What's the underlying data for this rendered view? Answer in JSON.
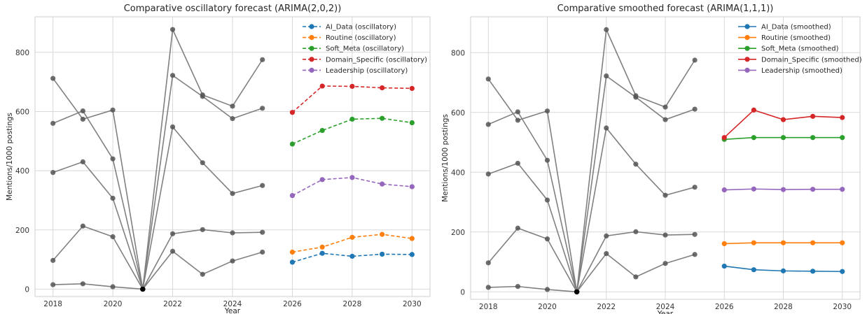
{
  "chart_data": [
    {
      "type": "line",
      "title": "Comparative oscillatory forecast (ARIMA(2,0,2))",
      "xlabel": "Year",
      "ylabel": "Mentions/1000 postings",
      "xlim": [
        2017.4,
        2030.6
      ],
      "ylim": [
        -25,
        920
      ],
      "xticks": [
        2018,
        2020,
        2022,
        2024,
        2026,
        2028,
        2030
      ],
      "yticks": [
        0,
        200,
        400,
        600,
        800
      ],
      "grid": true,
      "legend_position": "top-right",
      "historical_years": [
        2018,
        2019,
        2020,
        2021,
        2022,
        2023,
        2024,
        2025
      ],
      "historical_series": [
        [
          15,
          18,
          8,
          0,
          128,
          50,
          95,
          125
        ],
        [
          97,
          213,
          177,
          0,
          187,
          201,
          190,
          192
        ],
        [
          394,
          430,
          307,
          0,
          548,
          427,
          323,
          350
        ],
        [
          560,
          602,
          440,
          0,
          722,
          651,
          576,
          611
        ],
        [
          712,
          574,
          605,
          0,
          877,
          656,
          618,
          775
        ]
      ],
      "forecast_years": [
        2026,
        2027,
        2028,
        2029,
        2030
      ],
      "line_style": "dashed",
      "series": [
        {
          "name": "AI_Data (oscillatory)",
          "color": "#1f77b4",
          "values": [
            91,
            121,
            111,
            118,
            117
          ]
        },
        {
          "name": "Routine (oscillatory)",
          "color": "#ff7f0e",
          "values": [
            125,
            142,
            175,
            185,
            171
          ]
        },
        {
          "name": "Soft_Meta (oscillatory)",
          "color": "#2ca02c",
          "values": [
            490,
            536,
            574,
            577,
            562
          ]
        },
        {
          "name": "Domain_Specific (oscillatory)",
          "color": "#d62728",
          "values": [
            597,
            686,
            685,
            680,
            678
          ]
        },
        {
          "name": "Leadership (oscillatory)",
          "color": "#9467bd",
          "values": [
            316,
            370,
            377,
            355,
            346
          ]
        }
      ]
    },
    {
      "type": "line",
      "title": "Comparative smoothed forecast (ARIMA(1,1,1))",
      "xlabel": "Year",
      "ylabel": "Mentions/1000 postings",
      "xlim": [
        2017.4,
        2030.6
      ],
      "ylim": [
        -25,
        920
      ],
      "xticks": [
        2018,
        2020,
        2022,
        2024,
        2026,
        2028,
        2030
      ],
      "yticks": [
        0,
        200,
        400,
        600,
        800
      ],
      "grid": true,
      "legend_position": "top-right",
      "historical_years": [
        2018,
        2019,
        2020,
        2021,
        2022,
        2023,
        2024,
        2025
      ],
      "historical_series": [
        [
          15,
          18,
          8,
          0,
          128,
          50,
          95,
          125
        ],
        [
          97,
          213,
          177,
          0,
          187,
          201,
          190,
          192
        ],
        [
          394,
          430,
          307,
          0,
          548,
          427,
          323,
          350
        ],
        [
          560,
          602,
          440,
          0,
          722,
          651,
          576,
          611
        ],
        [
          712,
          574,
          605,
          0,
          877,
          656,
          618,
          775
        ]
      ],
      "forecast_years": [
        2026,
        2027,
        2028,
        2029,
        2030
      ],
      "line_style": "solid",
      "series": [
        {
          "name": "AI_Data (smoothed)",
          "color": "#1f77b4",
          "values": [
            86,
            74,
            70,
            69,
            68
          ]
        },
        {
          "name": "Routine (smoothed)",
          "color": "#ff7f0e",
          "values": [
            161,
            164,
            164,
            164,
            164
          ]
        },
        {
          "name": "Soft_Meta (smoothed)",
          "color": "#2ca02c",
          "values": [
            510,
            516,
            516,
            516,
            516
          ]
        },
        {
          "name": "Domain_Specific (smoothed)",
          "color": "#d62728",
          "values": [
            516,
            608,
            576,
            587,
            583
          ]
        },
        {
          "name": "Leadership (smoothed)",
          "color": "#9467bd",
          "values": [
            341,
            344,
            342,
            343,
            343
          ]
        }
      ]
    }
  ],
  "colors": {
    "historical_line": "#808080",
    "historical_marker": "#555555",
    "zero_marker": "#000000",
    "grid": "#d8d8d8"
  }
}
